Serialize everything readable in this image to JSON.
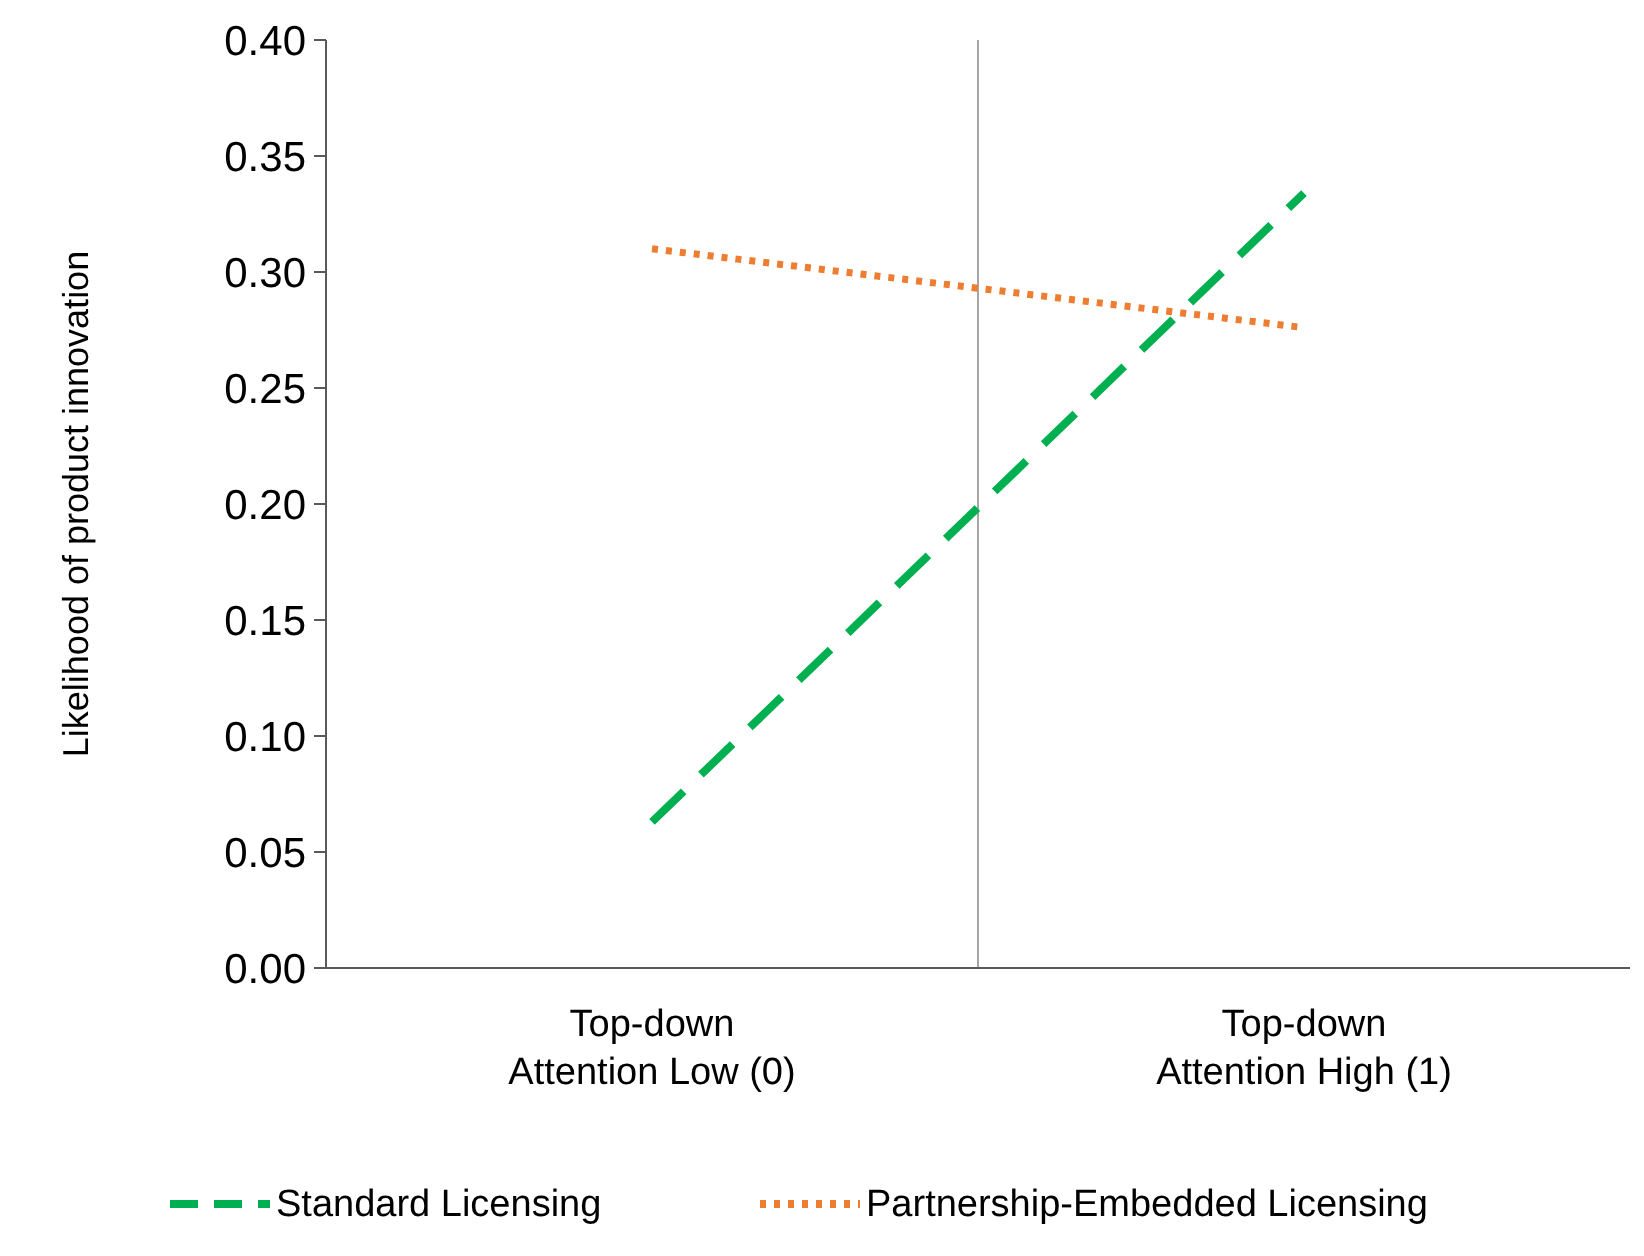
{
  "chart_data": {
    "type": "line",
    "ylabel": "Likelihood of product innovation",
    "categories": [
      "Top-down\nAttention Low (0)",
      "Top-down\nAttention High (1)"
    ],
    "series": [
      {
        "name": "Standard Licensing",
        "color": "#00b050",
        "values": [
          0.063,
          0.334
        ],
        "line_style": "dashed"
      },
      {
        "name": "Partnership-Embedded Licensing",
        "color": "#ed7d31",
        "values": [
          0.31,
          0.276
        ],
        "line_style": "dotted"
      }
    ],
    "ylim": [
      0,
      0.4
    ],
    "yticks": [
      {
        "value": 0,
        "label": "0.00"
      },
      {
        "value": 0.05,
        "label": "0.05"
      },
      {
        "value": 0.1,
        "label": "0.10"
      },
      {
        "value": 0.15,
        "label": "0.15"
      },
      {
        "value": 0.2,
        "label": "0.20"
      },
      {
        "value": 0.25,
        "label": "0.25"
      },
      {
        "value": 0.3,
        "label": "0.30"
      },
      {
        "value": 0.35,
        "label": "0.35"
      },
      {
        "value": 0.4,
        "label": "0.40"
      }
    ],
    "grid": "x",
    "legend": "bottom",
    "marker": "none"
  }
}
